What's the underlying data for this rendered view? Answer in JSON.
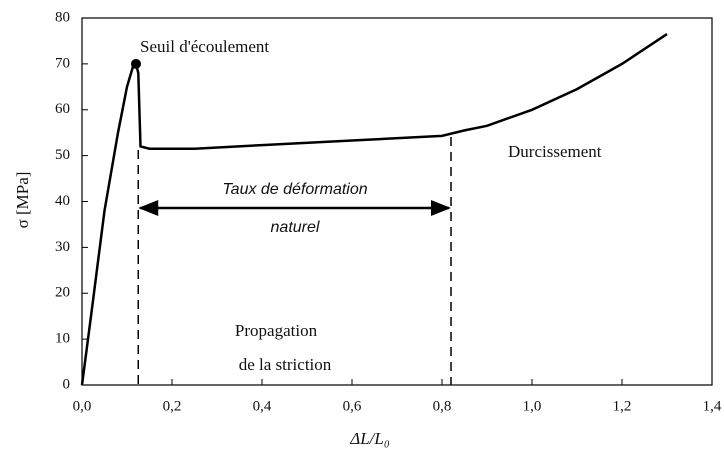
{
  "chart_data": {
    "type": "line",
    "xlabel": "ΔL/L₀",
    "ylabel": "σ [MPa]",
    "x": [
      0,
      0.02,
      0.05,
      0.08,
      0.1,
      0.115,
      0.12,
      0.125,
      0.13,
      0.15,
      0.25,
      0.4,
      0.6,
      0.8,
      0.85,
      0.9,
      1.0,
      1.1,
      1.2,
      1.3
    ],
    "values": [
      0,
      15,
      38,
      55,
      65,
      70,
      70,
      68,
      52,
      51.5,
      51.5,
      52.3,
      53.3,
      54.3,
      55.5,
      56.5,
      60,
      64.5,
      70,
      76.5
    ],
    "color": "#000000",
    "yield_point": {
      "x": 0.12,
      "y": 70
    },
    "reference_lines": {
      "x": [
        0.125,
        0.82
      ]
    },
    "annotations": [
      [
        "Seuil d'écoulement"
      ],
      [
        "Durcissement"
      ],
      [
        "Taux de déformation",
        "naturel"
      ],
      [
        "Propagation",
        "de la striction"
      ]
    ],
    "xlim": [
      0,
      1.4
    ],
    "xticks": [
      {
        "value": 0,
        "label": "0,0"
      },
      {
        "value": 0.2,
        "label": "0,2"
      },
      {
        "value": 0.4,
        "label": "0,4"
      },
      {
        "value": 0.6,
        "label": "0,6"
      },
      {
        "value": 0.8,
        "label": "0,8"
      },
      {
        "value": 1.0,
        "label": "1,0"
      },
      {
        "value": 1.2,
        "label": "1,2"
      },
      {
        "value": 1.4,
        "label": "1,4"
      }
    ],
    "ylim": [
      0,
      80
    ],
    "yticks": [
      0,
      10,
      20,
      30,
      40,
      50,
      60,
      70,
      80
    ]
  }
}
